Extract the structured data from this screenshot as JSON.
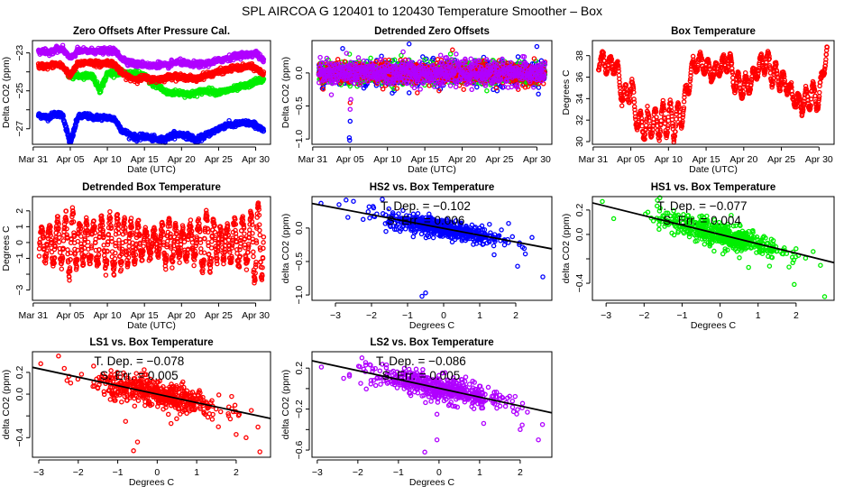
{
  "page_title": "SPL   AIRCOA G   120401 to 120430   Temperature Smoother – Box",
  "chart_data": [
    {
      "type": "scatter-timeseries",
      "title": "Zero Offsets After Pressure Cal.",
      "xlabel": "Date (UTC)",
      "ylabel": "Delta CO2 (ppm)",
      "xlim": [
        -0.1,
        32.0
      ],
      "ylim": [
        -27.82,
        -22.35
      ],
      "xticks": [
        0,
        5,
        10,
        15,
        20,
        25,
        30
      ],
      "xticklabels": [
        "Mar 31",
        "Apr 05",
        "Apr 10",
        "Apr 15",
        "Apr 20",
        "Apr 25",
        "Apr 30"
      ],
      "yticks": [
        -23,
        -24,
        -25,
        -26,
        -27
      ],
      "yticklabels": [
        "−23",
        "",
        "−25",
        "",
        "−27"
      ],
      "series": [
        {
          "name": "HS2",
          "color": "#0000ff",
          "start": 1.0,
          "daily": [
            -26.3,
            -26.4,
            -26.2,
            -26.3,
            -27.8,
            -26.4,
            -26.3,
            -26.4,
            -26.4,
            -26.4,
            -26.5,
            -27.1,
            -27.3,
            -27.5,
            -27.4,
            -27.5,
            -27.6,
            -27.5,
            -27.3,
            -27.3,
            -27.4,
            -27.6,
            -27.4,
            -27.2,
            -27.0,
            -26.8,
            -26.8,
            -26.7,
            -26.7,
            -26.8,
            -27.1
          ]
        },
        {
          "name": "HS1",
          "color": "#00ee00",
          "start": 5.0,
          "daily": [
            -24.2,
            -24.2,
            -24.2,
            -24.2,
            -25.0,
            -24.1,
            -24.0,
            -24.1,
            -24.1,
            -24.1,
            -24.2,
            -24.6,
            -24.8,
            -25.1,
            -25.1,
            -25.1,
            -25.2,
            -25.1,
            -25.0,
            -25.0,
            -25.1,
            -25.0,
            -24.9,
            -24.8,
            -24.7,
            -24.5,
            -24.4,
            -24.4,
            -24.3,
            -24.4,
            -24.8
          ]
        },
        {
          "name": "LS1",
          "color": "#ff0000",
          "start": 1.0,
          "daily": [
            -23.7,
            -23.7,
            -23.6,
            -23.7,
            -24.2,
            -23.6,
            -23.5,
            -23.5,
            -23.6,
            -23.5,
            -23.6,
            -24.1,
            -24.3,
            -24.4,
            -24.3,
            -24.4,
            -24.4,
            -24.3,
            -24.2,
            -24.3,
            -24.3,
            -24.4,
            -24.2,
            -24.1,
            -24.0,
            -23.9,
            -23.8,
            -23.8,
            -23.7,
            -23.8,
            -24.1
          ]
        },
        {
          "name": "LS2",
          "color": "#b000ff",
          "start": 1.0,
          "daily": [
            -22.9,
            -23.0,
            -22.8,
            -22.8,
            -23.3,
            -22.9,
            -22.9,
            -22.9,
            -22.9,
            -22.9,
            -22.9,
            -23.3,
            -23.5,
            -23.6,
            -23.6,
            -23.7,
            -23.6,
            -23.7,
            -23.5,
            -23.5,
            -23.6,
            -23.6,
            -23.6,
            -23.5,
            -23.4,
            -23.3,
            -23.2,
            -23.1,
            -23.1,
            -23.0,
            -23.4
          ]
        }
      ]
    },
    {
      "type": "scatter-timeseries-detrended",
      "title": "Detrended Zero Offsets",
      "xlabel": "Date (UTC)",
      "ylabel": "Delta CO2 (ppm)",
      "xlim": [
        -0.1,
        32.0
      ],
      "ylim": [
        -1.08,
        0.49
      ],
      "xticks": [
        0,
        5,
        10,
        15,
        20,
        25,
        30
      ],
      "xticklabels": [
        "Mar 31",
        "Apr 05",
        "Apr 10",
        "Apr 15",
        "Apr 20",
        "Apr 25",
        "Apr 30"
      ],
      "yticks": [
        0,
        -0.5,
        -1.0
      ],
      "yticklabels": [
        "0.0",
        "−0.5",
        "−1.0"
      ],
      "series": [
        {
          "name": "HS2",
          "color": "#0000ff",
          "sd": 0.09,
          "outliers": [
            [
              4.0,
              0.37
            ],
            [
              4.9,
              -0.98
            ],
            [
              4.95,
              -1.02
            ],
            [
              5.0,
              -0.73
            ],
            [
              12.9,
              0.44
            ],
            [
              12.9,
              -0.3
            ],
            [
              30.0,
              0.4
            ],
            [
              30.2,
              -0.32
            ],
            [
              10.9,
              -0.27
            ]
          ]
        },
        {
          "name": "HS1",
          "color": "#00ee00",
          "sd": 0.08,
          "outliers": [
            [
              12.9,
              0.2
            ],
            [
              15.0,
              0.2
            ],
            [
              18.7,
              0.2
            ],
            [
              23.3,
              -0.27
            ],
            [
              5.0,
              -0.2
            ]
          ]
        },
        {
          "name": "LS1",
          "color": "#ff0000",
          "sd": 0.08,
          "outliers": [
            [
              18.7,
              0.35
            ],
            [
              14.0,
              -0.3
            ],
            [
              16.9,
              -0.27
            ],
            [
              27.5,
              -0.25
            ],
            [
              5.0,
              -0.45
            ]
          ]
        },
        {
          "name": "LS2",
          "color": "#b000ff",
          "sd": 0.09,
          "outliers": [
            [
              2.5,
              -0.33
            ],
            [
              12.1,
              0.32
            ],
            [
              5.0,
              -0.55
            ],
            [
              5.1,
              -0.4
            ]
          ]
        }
      ]
    },
    {
      "type": "scatter-timeseries",
      "title": "Box Temperature",
      "xlabel": "Date (UTC)",
      "ylabel": "Degrees C",
      "xlim": [
        -0.1,
        32.0
      ],
      "ylim": [
        29.75,
        39.4
      ],
      "xticks": [
        0,
        5,
        10,
        15,
        20,
        25,
        30
      ],
      "xticklabels": [
        "Mar 31",
        "Apr 05",
        "Apr 10",
        "Apr 15",
        "Apr 20",
        "Apr 25",
        "Apr 30"
      ],
      "yticks": [
        30,
        32,
        34,
        36,
        38
      ],
      "yticklabels": [
        "30",
        "32",
        "34",
        "36",
        "38"
      ],
      "series": [
        {
          "name": "Box",
          "color": "#ff0000",
          "start": 1.0,
          "daily": [
            37.6,
            37.0,
            37.2,
            34.0,
            35.0,
            31.6,
            31.4,
            31.8,
            31.8,
            32.2,
            31.8,
            33.0,
            36.5,
            37.5,
            37.0,
            36.3,
            37.0,
            37.5,
            35.3,
            35.0,
            35.5,
            37.0,
            37.5,
            36.2,
            35.7,
            35.0,
            33.6,
            33.6,
            34.3,
            34.0,
            38.5
          ],
          "amplitude": [
            0.8,
            0.8,
            0.8,
            0.9,
            1.2,
            1.2,
            1.2,
            1.2,
            1.6,
            1.6,
            1.6,
            1.2,
            0.9,
            0.8,
            0.8,
            0.7,
            0.7,
            0.9,
            1.2,
            1.0,
            0.8,
            0.8,
            1.1,
            1.2,
            0.8,
            0.6,
            0.6,
            1.0,
            1.2,
            1.0,
            0.7
          ]
        }
      ]
    },
    {
      "type": "scatter-timeseries-diurnal",
      "title": "Detrended Box Temperature",
      "xlabel": "Date (UTC)",
      "ylabel": "Degrees C",
      "xlim": [
        -0.1,
        32.0
      ],
      "ylim": [
        -3.65,
        2.9
      ],
      "xticks": [
        0,
        5,
        10,
        15,
        20,
        25,
        30
      ],
      "xticklabels": [
        "Mar 31",
        "Apr 05",
        "Apr 10",
        "Apr 15",
        "Apr 20",
        "Apr 25",
        "Apr 30"
      ],
      "yticks": [
        2,
        1,
        0,
        -1,
        -2,
        -3
      ],
      "yticklabels": [
        "2",
        "1",
        "0",
        "−1",
        "",
        "−3"
      ],
      "series": [
        {
          "name": "Box",
          "color": "#ff0000",
          "start": 1.0,
          "amplitude": [
            1.1,
            0.9,
            1.6,
            1.3,
            2.2,
            1.3,
            1.3,
            1.2,
            1.6,
            1.6,
            1.9,
            1.5,
            1.2,
            1.2,
            0.8,
            0.7,
            0.8,
            1.6,
            1.1,
            0.8,
            1.2,
            1.1,
            1.8,
            1.6,
            0.9,
            1.0,
            1.3,
            1.6,
            1.2,
            2.6,
            2.3
          ]
        }
      ]
    },
    {
      "type": "scatter",
      "title": "HS2 vs. Box Temperature",
      "xlabel": "Degrees C",
      "ylabel": "delta CO2 (ppm)",
      "xlim": [
        -3.65,
        3.0
      ],
      "ylim": [
        -1.08,
        0.47
      ],
      "xticks": [
        -3,
        -2,
        -1,
        0,
        1,
        2
      ],
      "xticklabels": [
        "−3",
        "−2",
        "−1",
        "0",
        "1",
        "2"
      ],
      "yticks": [
        0,
        -0.5,
        -1.0
      ],
      "yticklabels": [
        "0.0",
        "−0.5",
        "−1.0"
      ],
      "color": "#0000ff",
      "slope": -0.102,
      "intercept": -0.005,
      "n": 520,
      "xsd": 0.8,
      "ysd": 0.07,
      "annotation": {
        "tdep": "T. Dep. =  −0.102",
        "serr": "S. Err. =  0.006"
      },
      "outliers": [
        [
          -3.4,
          0.37
        ],
        [
          -2.9,
          0.35
        ],
        [
          -2.5,
          0.4
        ],
        [
          -1.7,
          0.43
        ],
        [
          -2.05,
          0.15
        ],
        [
          -1.6,
          -0.05
        ],
        [
          -0.6,
          -1.02
        ],
        [
          -0.5,
          -0.97
        ],
        [
          2.05,
          -0.57
        ],
        [
          2.75,
          -0.73
        ],
        [
          1.4,
          -0.4
        ],
        [
          1.8,
          0.07
        ],
        [
          2.45,
          -0.14
        ]
      ]
    },
    {
      "type": "scatter",
      "title": "HS1 vs. Box Temperature",
      "xlabel": "Degrees C",
      "ylabel": "delta CO2 (ppm)",
      "xlim": [
        -3.36,
        3.0
      ],
      "ylim": [
        -0.54,
        0.31
      ],
      "xticks": [
        -3,
        -2,
        -1,
        0,
        1,
        2
      ],
      "xticklabels": [
        "−3",
        "−2",
        "−1",
        "0",
        "1",
        "2"
      ],
      "yticks": [
        0.2,
        0,
        -0.2,
        -0.4
      ],
      "yticklabels": [
        "0.2",
        "0.0",
        "",
        "−0.4"
      ],
      "color": "#00ee00",
      "slope": -0.077,
      "intercept": 0.0,
      "n": 520,
      "xsd": 0.8,
      "ysd": 0.05,
      "annotation": {
        "tdep": "T. Dep. =  −0.077",
        "serr": "S. Err. =  0.004"
      },
      "outliers": [
        [
          -3.1,
          0.27
        ],
        [
          -2.8,
          0.13
        ],
        [
          -1.65,
          0.28
        ],
        [
          0.75,
          -0.27
        ],
        [
          1.3,
          -0.26
        ],
        [
          1.95,
          -0.41
        ],
        [
          2.75,
          -0.51
        ],
        [
          2.45,
          -0.14
        ]
      ]
    },
    {
      "type": "scatter",
      "title": "LS1 vs. Box Temperature",
      "xlabel": "Degrees C",
      "ylabel": "delta CO2 (ppm)",
      "xlim": [
        -3.16,
        2.87
      ],
      "ylim": [
        -0.58,
        0.39
      ],
      "xticks": [
        -3,
        -2,
        -1,
        0,
        1,
        2
      ],
      "xticklabels": [
        "−3",
        "−2",
        "−1",
        "0",
        "1",
        "2"
      ],
      "yticks": [
        0.2,
        0,
        -0.2,
        -0.4
      ],
      "yticklabels": [
        "0.2",
        "0.0",
        "",
        "−0.4"
      ],
      "color": "#ff0000",
      "slope": -0.078,
      "intercept": 0.0,
      "n": 520,
      "xsd": 0.8,
      "ysd": 0.06,
      "annotation": {
        "tdep": "T. Dep. =  −0.078",
        "serr": "S. Err. =  0.005"
      },
      "outliers": [
        [
          -2.95,
          0.28
        ],
        [
          -2.5,
          0.35
        ],
        [
          -0.6,
          -0.52
        ],
        [
          -0.5,
          -0.44
        ],
        [
          -0.8,
          -0.25
        ],
        [
          1.55,
          -0.3
        ],
        [
          2.0,
          -0.37
        ],
        [
          2.25,
          -0.4
        ],
        [
          2.6,
          -0.53
        ],
        [
          0.35,
          -0.27
        ]
      ]
    },
    {
      "type": "scatter",
      "title": "LS2 vs. Box Temperature",
      "xlabel": "Degrees C",
      "ylabel": "delta CO2 (ppm)",
      "xlim": [
        -3.13,
        2.78
      ],
      "ylim": [
        -0.67,
        0.36
      ],
      "xticks": [
        -3,
        -2,
        -1,
        0,
        1,
        2
      ],
      "xticklabels": [
        "−3",
        "−2",
        "−1",
        "0",
        "1",
        "2"
      ],
      "yticks": [
        0.2,
        0,
        -0.2,
        -0.4,
        -0.6
      ],
      "yticklabels": [
        "0.2",
        "",
        "−0.2",
        "",
        "−0.6"
      ],
      "color": "#b000ff",
      "slope": -0.086,
      "intercept": 0.003,
      "n": 520,
      "xsd": 0.8,
      "ysd": 0.06,
      "annotation": {
        "tdep": "T. Dep. =  −0.086",
        "serr": "S. Err. =  0.005"
      },
      "outliers": [
        [
          -2.9,
          0.21
        ],
        [
          -2.35,
          0.1
        ],
        [
          -1.9,
          0.3
        ],
        [
          -0.35,
          -0.62
        ],
        [
          -0.05,
          -0.5
        ],
        [
          -0.05,
          -0.25
        ],
        [
          2.45,
          -0.5
        ],
        [
          2.55,
          -0.35
        ],
        [
          2.0,
          -0.4
        ],
        [
          1.1,
          -0.34
        ]
      ]
    }
  ]
}
